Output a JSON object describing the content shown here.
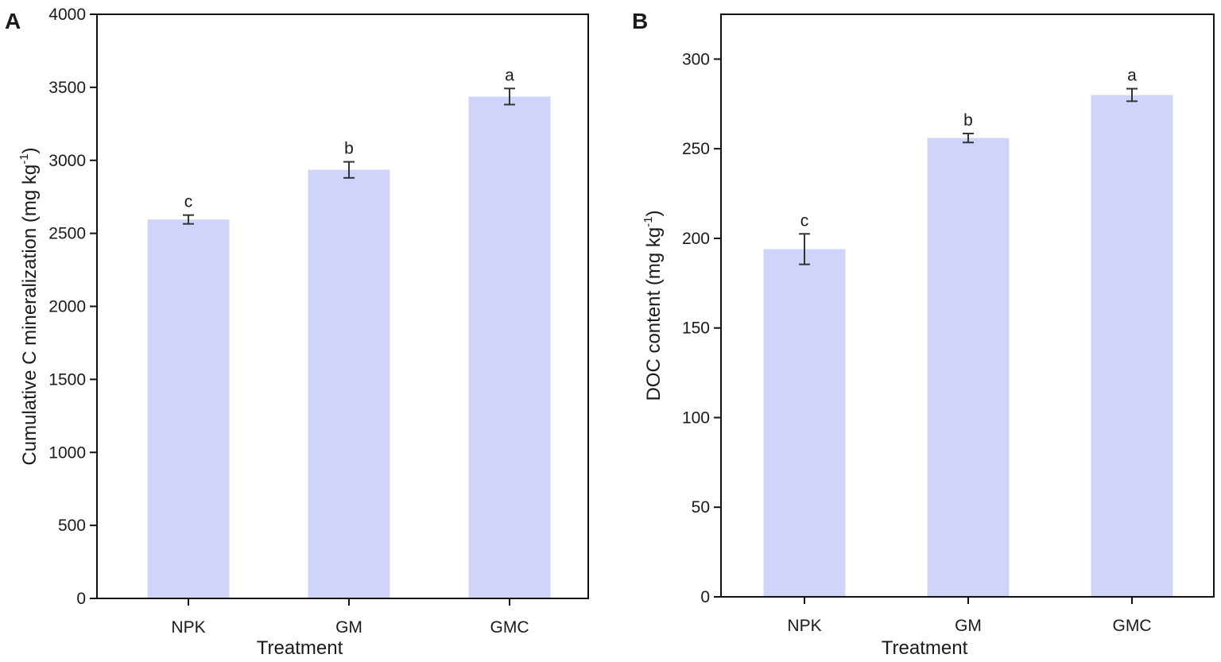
{
  "chart_data": [
    {
      "panel": "A",
      "type": "bar",
      "categories": [
        "NPK",
        "GM",
        "GMC"
      ],
      "values": [
        2595,
        2935,
        3437
      ],
      "errors": [
        30,
        55,
        55
      ],
      "significance": [
        "c",
        "b",
        "a"
      ],
      "xlabel": "Treatment",
      "ylabel_main": "Cumulative C mineralization (mg kg",
      "ylabel_sup": "-1",
      "ylabel_end": ")",
      "ylim": [
        0,
        4000
      ],
      "yticks": [
        0,
        500,
        1000,
        1500,
        2000,
        2500,
        3000,
        3500,
        4000
      ],
      "ytick_labels": [
        "0",
        "500",
        "1000",
        "1500",
        "2000",
        "2500",
        "3000",
        "3500",
        "4000"
      ],
      "bar_color": "#d0d4fb"
    },
    {
      "panel": "B",
      "type": "bar",
      "categories": [
        "NPK",
        "GM",
        "GMC"
      ],
      "values": [
        194,
        256,
        280
      ],
      "errors": [
        8.5,
        2.5,
        3.5
      ],
      "significance": [
        "c",
        "b",
        "a"
      ],
      "xlabel": "Treatment",
      "ylabel_main": "DOC content (mg kg",
      "ylabel_sup": "-1",
      "ylabel_end": ")",
      "ylim": [
        0,
        325
      ],
      "yticks": [
        0,
        50,
        100,
        150,
        200,
        250,
        300
      ],
      "ytick_labels": [
        "0",
        "50",
        "100",
        "150",
        "200",
        "250",
        "300"
      ],
      "bar_color": "#d0d4fb"
    }
  ]
}
